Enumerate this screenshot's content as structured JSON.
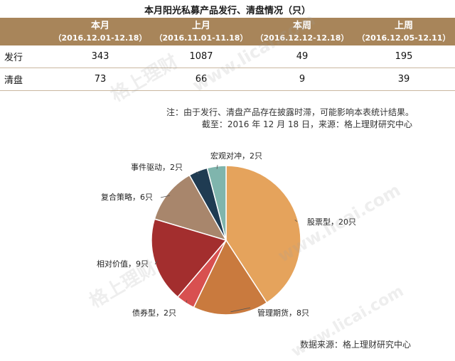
{
  "title": "本月阳光私募产品发行、清盘情况（只）",
  "table": {
    "columns": [
      {
        "name": "本月",
        "period": "（2016.12.01-12.18）"
      },
      {
        "name": "上月",
        "period": "（2016.11.01-11.18）"
      },
      {
        "name": "本周",
        "period": "（2016.12.12-12.18）"
      },
      {
        "name": "上周",
        "period": "（2016.12.05-12.11）"
      }
    ],
    "rows": [
      {
        "label": "发行",
        "values": [
          "343",
          "1087",
          "49",
          "195"
        ]
      },
      {
        "label": "清盘",
        "values": [
          "73",
          "66",
          "9",
          "39"
        ]
      }
    ]
  },
  "note": "注：由于发行、清盘产品存在披露时滞，可能影响本表统计结果。",
  "cutoff": "截至：2016 年 12 月 18 日，来源：格上理财研究中心",
  "source": "数据来源：格上理财研究中心",
  "watermarks": [
    "格上理财",
    "www.licai.com"
  ],
  "chart_data": {
    "type": "pie",
    "unit": "只",
    "slices": [
      {
        "label": "股票型",
        "value": 20,
        "color": "#e5a35c"
      },
      {
        "label": "管理期货",
        "value": 8,
        "color": "#c97a3e"
      },
      {
        "label": "债券型",
        "value": 2,
        "color": "#d85050"
      },
      {
        "label": "相对价值",
        "value": 9,
        "color": "#a32e2e"
      },
      {
        "label": "复合策略",
        "value": 6,
        "color": "#a8866c"
      },
      {
        "label": "事件驱动",
        "value": 2,
        "color": "#1f3b52"
      },
      {
        "label": "宏观对冲",
        "value": 2,
        "color": "#7fb5ad"
      }
    ],
    "slice_labels": [
      "股票型，20只",
      "管理期货，8只",
      "债券型，2只",
      "相对价值，9只",
      "复合策略，6只",
      "事件驱动，2只",
      "宏观对冲，2只"
    ]
  }
}
